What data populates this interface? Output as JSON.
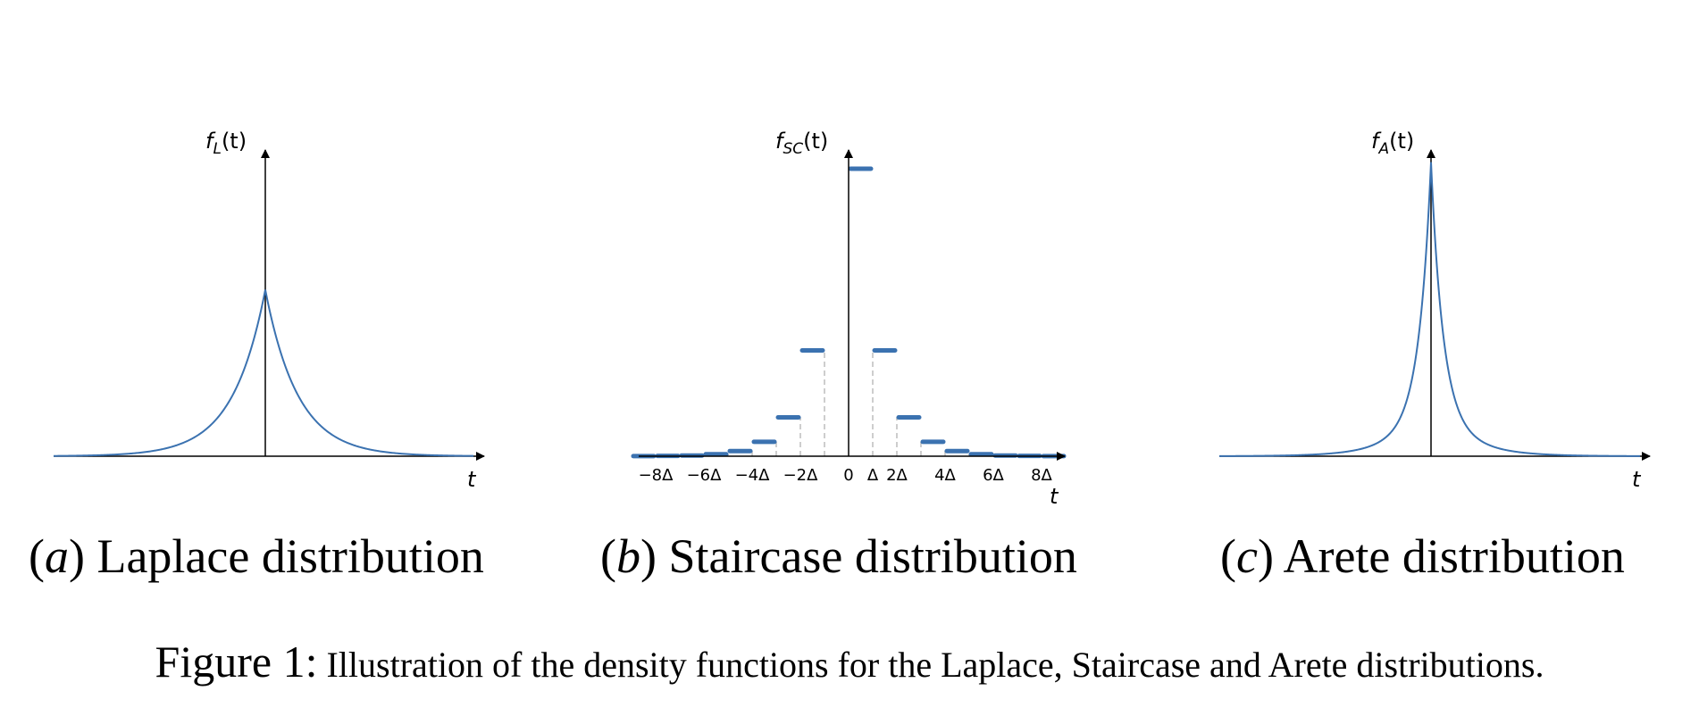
{
  "colors": {
    "curve": "#3b72b0",
    "axis": "#000000",
    "guide": "#c8c8c8"
  },
  "chart_data": [
    {
      "type": "line",
      "id": "laplace",
      "ylabel": {
        "base": "f",
        "sub": "L",
        "arg": "(t)"
      },
      "xlabel": "t",
      "x_range": [
        -1,
        1
      ],
      "peak": 0.5,
      "y_range": [
        0,
        0.92
      ],
      "decay": 6.5,
      "caption": {
        "letter": "a",
        "text": "Laplace distribution"
      }
    },
    {
      "type": "step",
      "id": "staircase",
      "ylabel": {
        "base": "f",
        "sub": "SC",
        "arg": "(t)"
      },
      "xlabel": "t",
      "x_tick_labels": [
        "−8Δ",
        "−6Δ",
        "−4Δ",
        "−2Δ",
        "0",
        "Δ",
        "2Δ",
        "4Δ",
        "6Δ",
        "8Δ"
      ],
      "x_tick_positions": [
        -8,
        -6,
        -4,
        -2,
        0,
        1,
        2,
        4,
        6,
        8
      ],
      "x_range": [
        -9,
        9
      ],
      "y_range": [
        0,
        1
      ],
      "center_step": {
        "x0": 0,
        "x1": 1,
        "y": 1.0
      },
      "steps": [
        {
          "x0": 1,
          "x1": 2,
          "y": 0.368
        },
        {
          "x0": 2,
          "x1": 3,
          "y": 0.135
        },
        {
          "x0": 3,
          "x1": 4,
          "y": 0.05
        },
        {
          "x0": 4,
          "x1": 5,
          "y": 0.018
        },
        {
          "x0": 5,
          "x1": 6,
          "y": 0.007
        },
        {
          "x0": 6,
          "x1": 7,
          "y": 0.0025
        },
        {
          "x0": 7,
          "x1": 8,
          "y": 0.001
        },
        {
          "x0": 8,
          "x1": 9,
          "y": 0.0004
        },
        {
          "x0": -1,
          "x1": -2,
          "y": 0.368
        },
        {
          "x0": -2,
          "x1": -3,
          "y": 0.135
        },
        {
          "x0": -3,
          "x1": -4,
          "y": 0.05
        },
        {
          "x0": -4,
          "x1": -5,
          "y": 0.018
        },
        {
          "x0": -5,
          "x1": -6,
          "y": 0.007
        },
        {
          "x0": -6,
          "x1": -7,
          "y": 0.0025
        },
        {
          "x0": -7,
          "x1": -8,
          "y": 0.001
        },
        {
          "x0": -8,
          "x1": -9,
          "y": 0.0004
        }
      ],
      "caption": {
        "letter": "b",
        "text": "Staircase distribution"
      }
    },
    {
      "type": "line",
      "id": "arete",
      "ylabel": {
        "base": "f",
        "sub": "A",
        "arg": "(t)"
      },
      "xlabel": "t",
      "x_range": [
        -1,
        1
      ],
      "peak": 0.96,
      "y_range": [
        0,
        1
      ],
      "caption": {
        "letter": "c",
        "text": "Arete distribution"
      }
    }
  ],
  "figure_caption": {
    "label": "Figure 1:",
    "text": "Illustration of the density functions for the Laplace, Staircase and Arete distributions."
  }
}
